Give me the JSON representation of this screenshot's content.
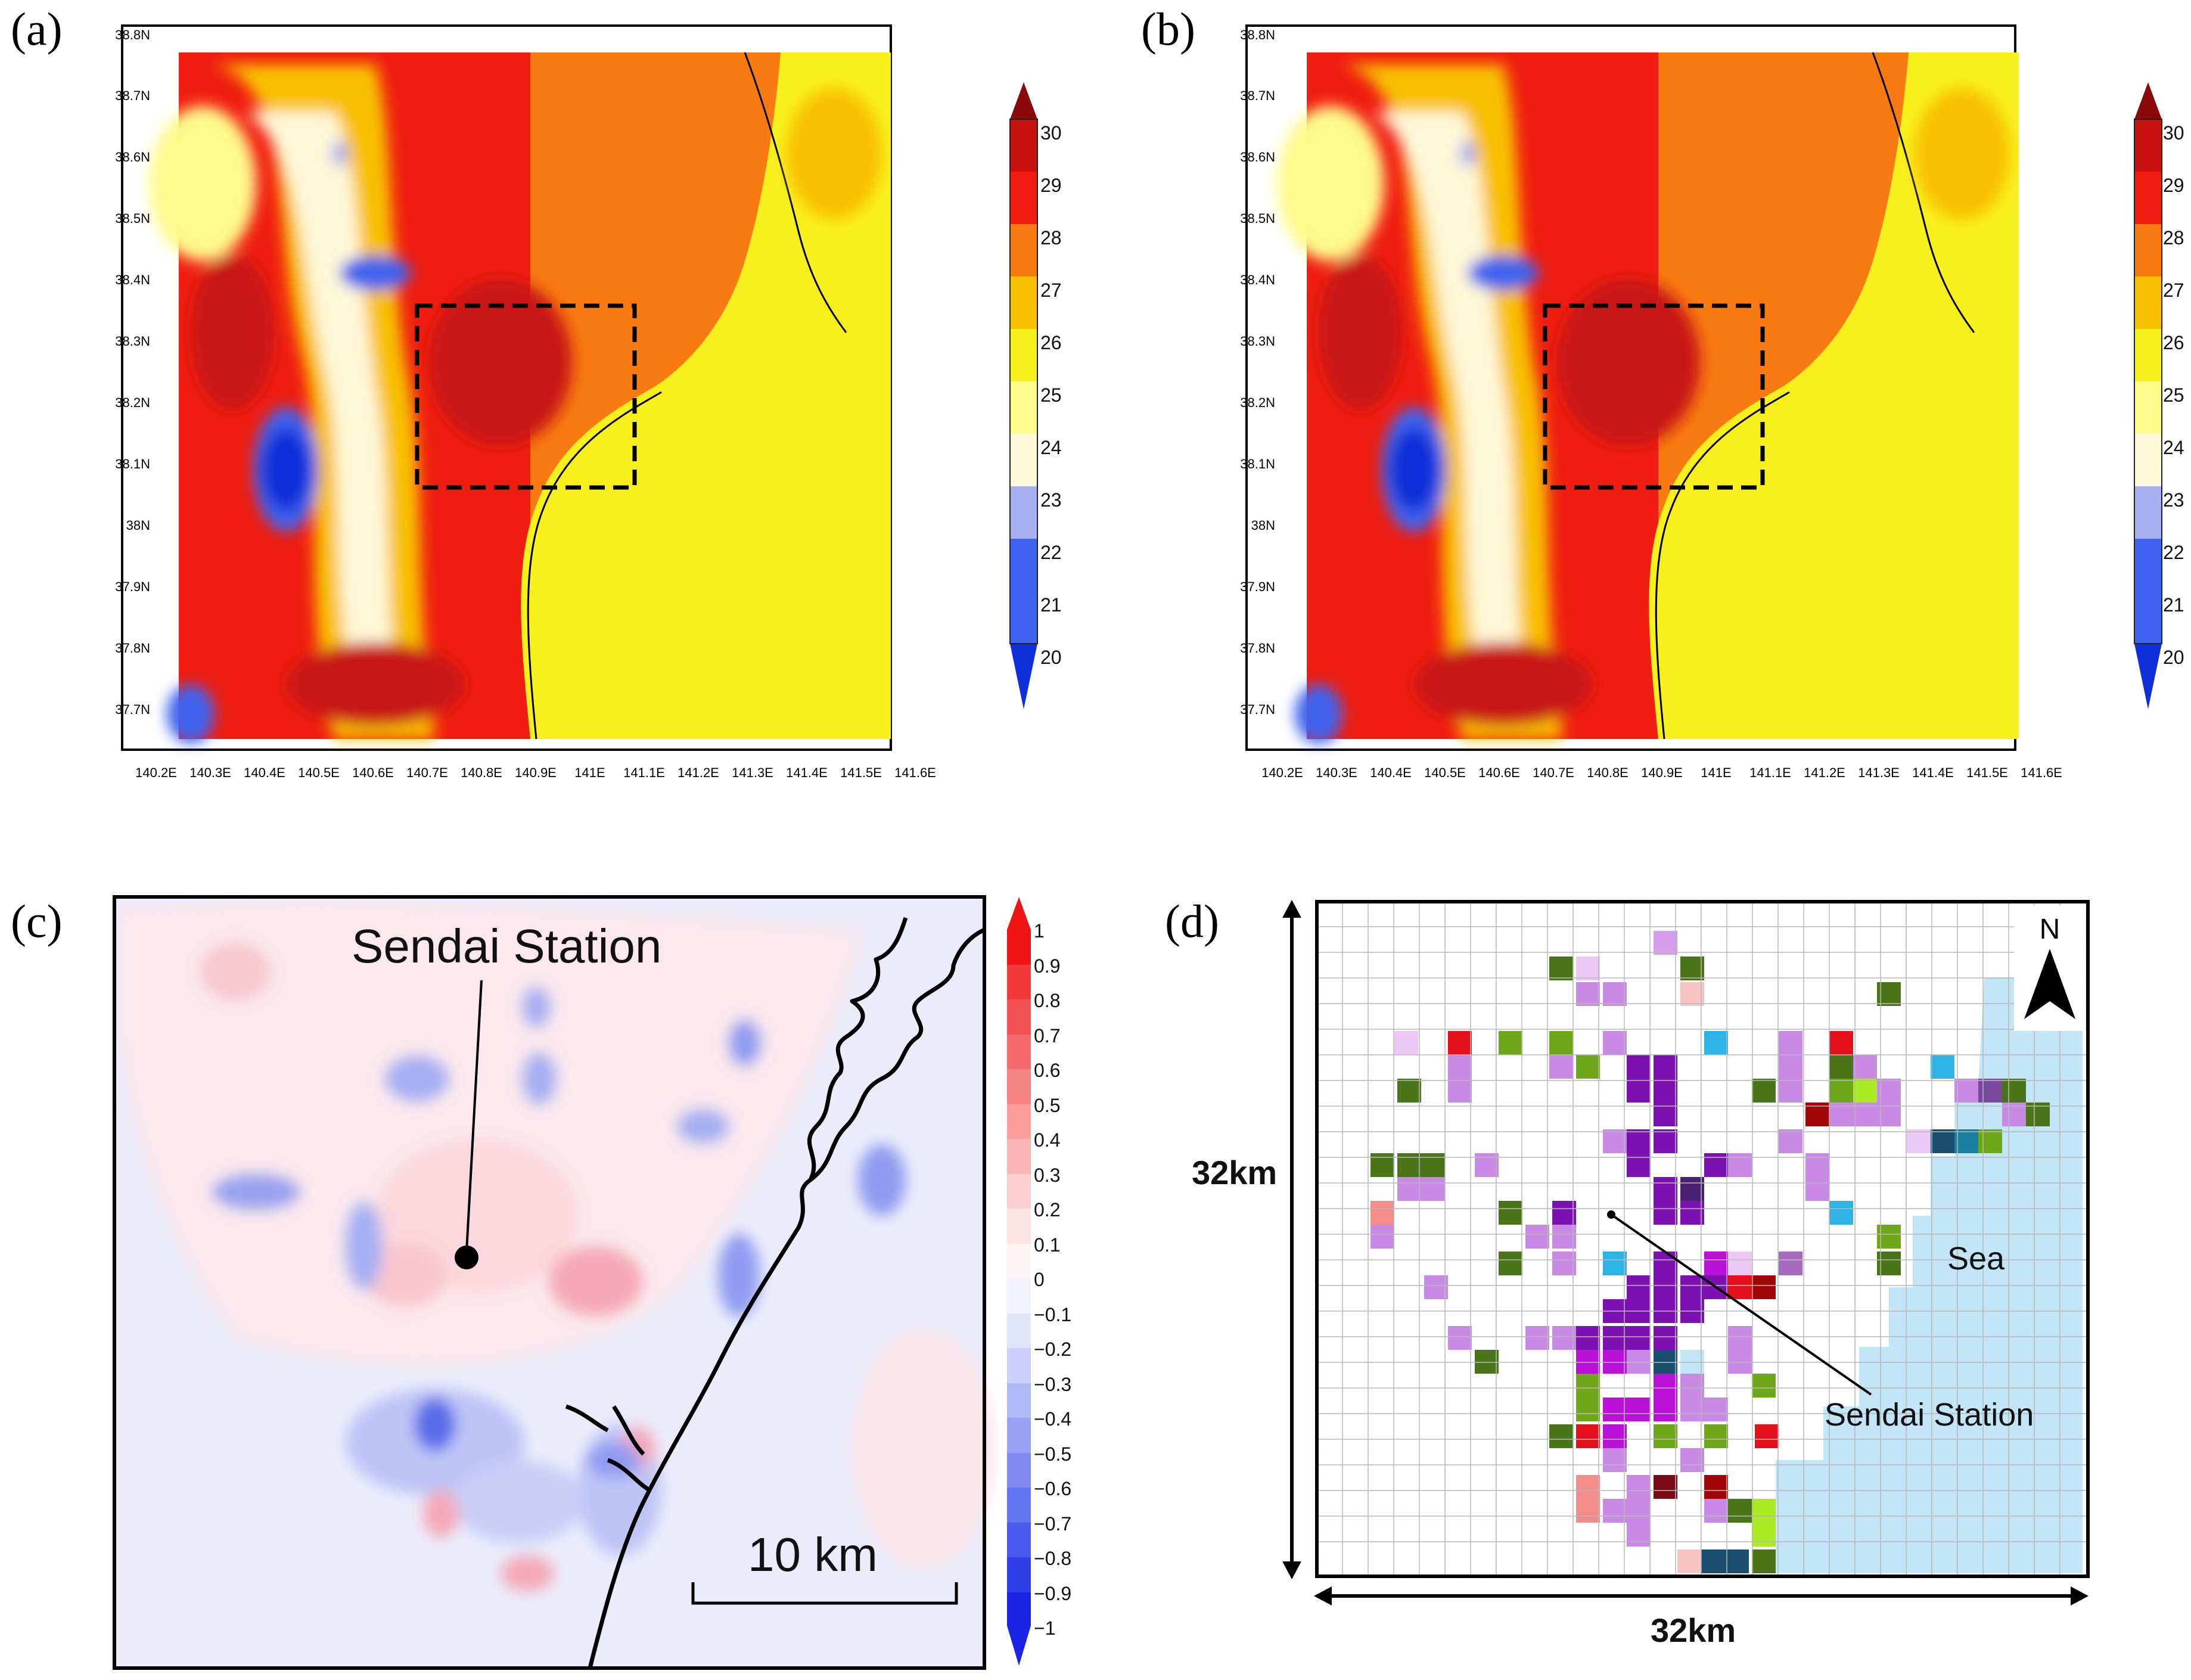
{
  "panels": {
    "a": {
      "label": "(a)",
      "lat_ticks": [
        "38.8N",
        "38.7N",
        "38.6N",
        "38.5N",
        "38.4N",
        "38.3N",
        "38.2N",
        "38.1N",
        "38N",
        "37.9N",
        "37.8N",
        "37.7N"
      ],
      "lon_ticks": [
        "140.2E",
        "140.3E",
        "140.4E",
        "140.5E",
        "140.6E",
        "140.7E",
        "140.8E",
        "140.9E",
        "141E",
        "141.1E",
        "141.2E",
        "141.3E",
        "141.4E",
        "141.5E",
        "141.6E"
      ],
      "colorbar_ticks": [
        "30",
        "29",
        "28",
        "27",
        "26",
        "25",
        "24",
        "23",
        "22",
        "21",
        "20"
      ]
    },
    "b": {
      "label": "(b)",
      "lat_ticks": [
        "38.8N",
        "38.7N",
        "38.6N",
        "38.5N",
        "38.4N",
        "38.3N",
        "38.2N",
        "38.1N",
        "38N",
        "37.9N",
        "37.8N",
        "37.7N"
      ],
      "lon_ticks": [
        "140.2E",
        "140.3E",
        "140.4E",
        "140.5E",
        "140.6E",
        "140.7E",
        "140.8E",
        "140.9E",
        "141E",
        "141.1E",
        "141.2E",
        "141.3E",
        "141.4E",
        "141.5E",
        "141.6E"
      ],
      "colorbar_ticks": [
        "30",
        "29",
        "28",
        "27",
        "26",
        "25",
        "24",
        "23",
        "22",
        "21",
        "20"
      ]
    },
    "c": {
      "label": "(c)",
      "station_label": "Sendai Station",
      "scale_label": "10 km",
      "colorbar_ticks": [
        "1",
        "0.9",
        "0.8",
        "0.7",
        "0.6",
        "0.5",
        "0.4",
        "0.3",
        "0.2",
        "0.1",
        "0",
        "−0.1",
        "−0.2",
        "−0.3",
        "−0.4",
        "−0.5",
        "−0.6",
        "−0.7",
        "−0.8",
        "−0.9",
        "−1"
      ]
    },
    "d": {
      "label": "(d)",
      "station_label": "Sendai Station",
      "sea_label": "Sea",
      "north_label": "N",
      "x_extent_label": "32km",
      "y_extent_label": "32km"
    }
  },
  "colors": {
    "temp_scale": [
      "#0f2fd8",
      "#3f63ee",
      "#a9b0f2",
      "#fff8d8",
      "#fffa8c",
      "#f8f01c",
      "#f8c000",
      "#f87a10",
      "#f01e10",
      "#c81212",
      "#8a0a0a"
    ],
    "sea": "#c2e6f8",
    "urban_purple": "#7d10b0",
    "forest_green": "#4a7418"
  }
}
